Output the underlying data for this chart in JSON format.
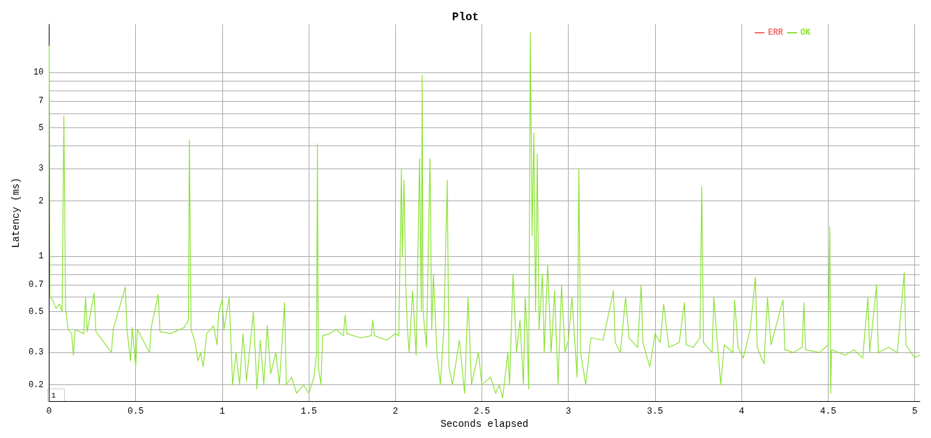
{
  "chart_data": {
    "type": "line",
    "title": "Plot",
    "xlabel": "Seconds elapsed",
    "ylabel": "Latency (ms)",
    "log": "y",
    "grid": true,
    "legend": "top right",
    "marker": "none",
    "line_style": "solid",
    "xlim": [
      0,
      5.03
    ],
    "xticks": [
      0,
      0.5,
      1,
      1.5,
      2,
      2.5,
      3,
      3.5,
      4,
      4.5,
      5
    ],
    "ylim": [
      0.163,
      18.3
    ],
    "yticks": [
      0.2,
      0.3,
      {
        "value": 0.4,
        "label": null
      },
      0.5,
      {
        "value": 0.6,
        "label": null
      },
      0.7,
      {
        "value": 0.8,
        "label": null
      },
      {
        "value": 0.9,
        "label": null
      },
      1,
      2,
      3,
      {
        "value": 4,
        "label": null
      },
      5,
      {
        "value": 6,
        "label": null
      },
      7,
      {
        "value": 8,
        "label": null
      },
      {
        "value": 9,
        "label": null
      },
      10
    ],
    "annotations": [
      "1"
    ],
    "series": [
      {
        "name": "ERR",
        "color": "#f26d6d"
      },
      {
        "name": "OK",
        "color": "#8ae234",
        "x": [
          0,
          0.005,
          0.02,
          0.04,
          0.06,
          0.075,
          0.085,
          0.095,
          0.11,
          0.13,
          0.14,
          0.15,
          0.2,
          0.21,
          0.22,
          0.26,
          0.27,
          0.36,
          0.37,
          0.44,
          0.45,
          0.47,
          0.48,
          0.5,
          0.51,
          0.58,
          0.59,
          0.63,
          0.64,
          0.7,
          0.78,
          0.805,
          0.81,
          0.82,
          0.84,
          0.86,
          0.875,
          0.89,
          0.91,
          0.95,
          0.97,
          0.98,
          1.0,
          1.01,
          1.04,
          1.05,
          1.06,
          1.08,
          1.1,
          1.12,
          1.14,
          1.16,
          1.18,
          1.2,
          1.22,
          1.24,
          1.26,
          1.28,
          1.31,
          1.33,
          1.36,
          1.37,
          1.4,
          1.43,
          1.47,
          1.5,
          1.53,
          1.545,
          1.55,
          1.555,
          1.57,
          1.58,
          1.62,
          1.66,
          1.7,
          1.71,
          1.72,
          1.8,
          1.86,
          1.87,
          1.88,
          1.95,
          2.0,
          2.02,
          2.03,
          2.035,
          2.04,
          2.05,
          2.06,
          2.07,
          2.08,
          2.1,
          2.12,
          2.14,
          2.15,
          2.155,
          2.16,
          2.18,
          2.2,
          2.21,
          2.22,
          2.24,
          2.26,
          2.28,
          2.3,
          2.31,
          2.33,
          2.37,
          2.4,
          2.42,
          2.44,
          2.48,
          2.5,
          2.55,
          2.58,
          2.6,
          2.62,
          2.65,
          2.66,
          2.68,
          2.7,
          2.72,
          2.74,
          2.75,
          2.76,
          2.77,
          2.78,
          2.79,
          2.8,
          2.81,
          2.82,
          2.83,
          2.85,
          2.86,
          2.88,
          2.9,
          2.92,
          2.94,
          2.96,
          2.98,
          3.0,
          3.02,
          3.05,
          3.06,
          3.07,
          3.1,
          3.12,
          3.13,
          3.2,
          3.26,
          3.27,
          3.3,
          3.33,
          3.35,
          3.4,
          3.42,
          3.43,
          3.47,
          3.5,
          3.53,
          3.55,
          3.58,
          3.64,
          3.67,
          3.68,
          3.72,
          3.76,
          3.77,
          3.78,
          3.83,
          3.84,
          3.86,
          3.88,
          3.9,
          3.95,
          3.96,
          3.98,
          4.01,
          4.05,
          4.08,
          4.09,
          4.13,
          4.15,
          4.17,
          4.24,
          4.25,
          4.3,
          4.35,
          4.36,
          4.37,
          4.45,
          4.5,
          4.51,
          4.515,
          4.52,
          4.6,
          4.65,
          4.7,
          4.73,
          4.74,
          4.78,
          4.79,
          4.85,
          4.9,
          4.94,
          4.95,
          5.0,
          5.03
        ],
        "values": [
          14,
          0.6,
          0.58,
          0.52,
          0.55,
          0.5,
          5.8,
          0.52,
          0.4,
          0.38,
          0.29,
          0.4,
          0.38,
          0.6,
          0.39,
          0.63,
          0.39,
          0.3,
          0.4,
          0.68,
          0.4,
          0.27,
          0.41,
          0.25,
          0.4,
          0.3,
          0.41,
          0.62,
          0.39,
          0.38,
          0.41,
          0.45,
          4.3,
          0.4,
          0.35,
          0.27,
          0.3,
          0.25,
          0.38,
          0.42,
          0.33,
          0.5,
          0.58,
          0.4,
          0.6,
          0.35,
          0.2,
          0.3,
          0.2,
          0.38,
          0.21,
          0.32,
          0.5,
          0.19,
          0.35,
          0.2,
          0.42,
          0.23,
          0.3,
          0.2,
          0.56,
          0.2,
          0.22,
          0.18,
          0.2,
          0.18,
          0.22,
          0.3,
          4.1,
          0.25,
          0.2,
          0.37,
          0.38,
          0.4,
          0.37,
          0.48,
          0.38,
          0.36,
          0.37,
          0.45,
          0.37,
          0.35,
          0.38,
          0.37,
          1.5,
          3.0,
          1.0,
          2.6,
          0.7,
          0.4,
          0.3,
          0.65,
          0.29,
          3.4,
          0.5,
          9.7,
          0.5,
          0.32,
          3.4,
          0.4,
          0.8,
          0.3,
          0.2,
          0.4,
          2.6,
          0.25,
          0.2,
          0.35,
          0.18,
          0.6,
          0.2,
          0.3,
          0.2,
          0.22,
          0.18,
          0.2,
          0.17,
          0.3,
          0.2,
          0.8,
          0.3,
          0.45,
          0.2,
          0.6,
          0.4,
          0.19,
          16.5,
          1.3,
          4.7,
          0.5,
          3.6,
          0.4,
          0.8,
          0.3,
          0.9,
          0.3,
          0.65,
          0.2,
          0.7,
          0.3,
          0.35,
          0.6,
          0.22,
          3.0,
          0.3,
          0.2,
          0.3,
          0.36,
          0.35,
          0.65,
          0.34,
          0.3,
          0.6,
          0.36,
          0.32,
          0.7,
          0.34,
          0.25,
          0.38,
          0.34,
          0.55,
          0.32,
          0.34,
          0.56,
          0.33,
          0.32,
          0.36,
          2.4,
          0.34,
          0.3,
          0.6,
          0.34,
          0.2,
          0.33,
          0.3,
          0.58,
          0.32,
          0.28,
          0.4,
          0.77,
          0.32,
          0.26,
          0.6,
          0.33,
          0.58,
          0.31,
          0.3,
          0.32,
          0.56,
          0.31,
          0.3,
          0.33,
          1.45,
          0.18,
          0.31,
          0.29,
          0.31,
          0.28,
          0.6,
          0.3,
          0.7,
          0.3,
          0.32,
          0.3,
          0.82,
          0.33,
          0.28,
          0.29
        ]
      }
    ]
  }
}
